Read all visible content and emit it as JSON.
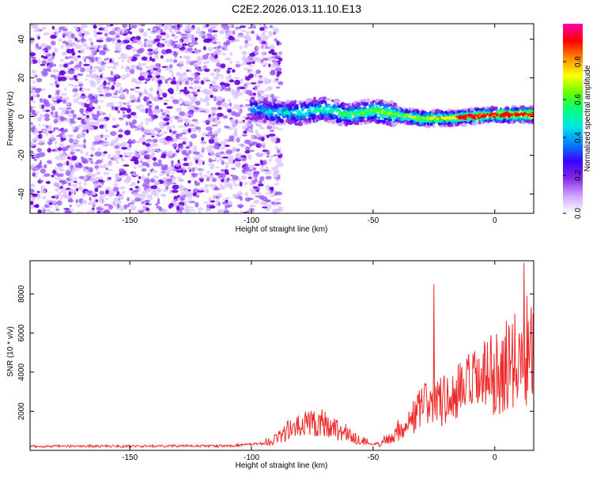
{
  "title": "C2E2.2026.013.11.10.E13",
  "colors": {
    "snr_line": "#ee2a2a",
    "cmap": [
      "#ffffff",
      "#cfa8ff",
      "#8a2be2",
      "#3a00ff",
      "#0080ff",
      "#00e5e5",
      "#00ff7f",
      "#66ff00",
      "#ffff00",
      "#ff8c00",
      "#ff0000",
      "#ff00aa"
    ]
  },
  "chart_data": [
    {
      "type": "heatmap",
      "title": "C2E2.2026.013.11.10.E13",
      "xlabel": "Height of straight line (km)",
      "ylabel": "Frequency (Hz)",
      "xlim": [
        -191,
        16
      ],
      "ylim": [
        -50,
        48
      ],
      "x_ticks": [
        -150,
        -100,
        -50,
        0
      ],
      "y_ticks": [
        -40,
        -20,
        0,
        20,
        40
      ],
      "colorbar": {
        "label": "Normalized spectral amplitude",
        "range": [
          0,
          1
        ],
        "ticks": [
          0.0,
          0.2,
          0.4,
          0.6,
          0.8
        ]
      },
      "regions": [
        {
          "x": [
            -191,
            -88
          ],
          "y": [
            -50,
            48
          ],
          "amplitude": 0.08
        },
        {
          "x": [
            -101,
            16
          ],
          "y": [
            -2,
            4
          ],
          "amplitude": 0.5
        }
      ],
      "ridge": [
        {
          "x": -100,
          "y": 4
        },
        {
          "x": -90,
          "y": 2
        },
        {
          "x": -80,
          "y": 2
        },
        {
          "x": -70,
          "y": 4
        },
        {
          "x": -60,
          "y": 1
        },
        {
          "x": -50,
          "y": 3
        },
        {
          "x": -40,
          "y": 1
        },
        {
          "x": -30,
          "y": -1
        },
        {
          "x": -20,
          "y": -1
        },
        {
          "x": -10,
          "y": 0
        },
        {
          "x": 0,
          "y": 1
        },
        {
          "x": 10,
          "y": 1
        },
        {
          "x": 16,
          "y": 1
        }
      ]
    },
    {
      "type": "line",
      "xlabel": "Height of straight line (km)",
      "ylabel": "SNR (10 * v/v)",
      "xlim": [
        -191,
        16
      ],
      "ylim": [
        0,
        9700
      ],
      "x_ticks": [
        -150,
        -100,
        -50,
        0
      ],
      "y_ticks": [
        2000,
        4000,
        6000,
        8000
      ],
      "series": [
        {
          "x": [
            -191,
            -170,
            -150,
            -130,
            -110,
            -95,
            -90,
            -85,
            -80,
            -75,
            -70,
            -65,
            -60,
            -55,
            -50,
            -45,
            -40,
            -35,
            -30,
            -25,
            -20,
            -15,
            -10,
            -5,
            0,
            5,
            10,
            13,
            16
          ],
          "values": [
            200,
            220,
            210,
            230,
            220,
            350,
            600,
            1000,
            1200,
            1500,
            1400,
            1100,
            800,
            500,
            300,
            500,
            1000,
            1500,
            2200,
            2600,
            2500,
            2900,
            3300,
            3600,
            3900,
            4300,
            4800,
            5500,
            5300
          ],
          "peaks": [
            {
              "x": -25,
              "y": 8500
            },
            {
              "x": 12,
              "y": 9600
            },
            {
              "x": 13,
              "y": 2300
            }
          ]
        }
      ]
    }
  ]
}
